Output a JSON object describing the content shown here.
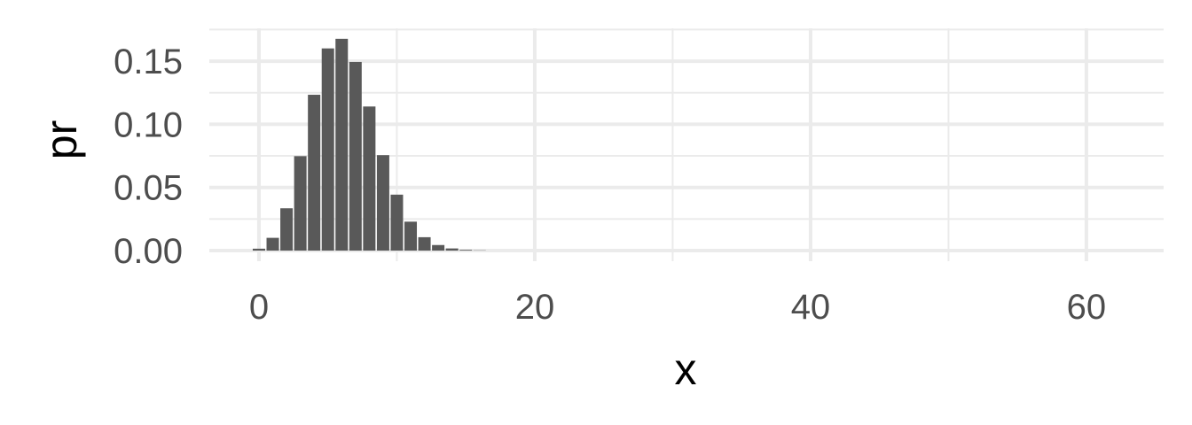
{
  "chart_data": {
    "type": "bar",
    "xlabel": "x",
    "ylabel": "pr",
    "xlim": [
      -3.6,
      65.6
    ],
    "ylim": [
      -0.0084,
      0.176
    ],
    "x_ticks": [
      0,
      20,
      40,
      60
    ],
    "x_tick_labels": [
      "0",
      "20",
      "40",
      "60"
    ],
    "y_ticks": [
      0,
      0.05,
      0.1,
      0.15
    ],
    "y_tick_labels": [
      "0.00",
      "0.05",
      "0.10",
      "0.15"
    ],
    "grid": true,
    "bar_color": "#595959",
    "x": [
      0,
      1,
      2,
      3,
      4,
      5,
      6,
      7,
      8,
      9,
      10,
      11,
      12,
      13,
      14,
      15,
      16
    ],
    "values": [
      0.0015,
      0.0101,
      0.0335,
      0.0748,
      0.1234,
      0.1601,
      0.1677,
      0.1494,
      0.1141,
      0.0756,
      0.0443,
      0.0229,
      0.0106,
      0.0044,
      0.0017,
      0.0006,
      0.0002
    ]
  }
}
